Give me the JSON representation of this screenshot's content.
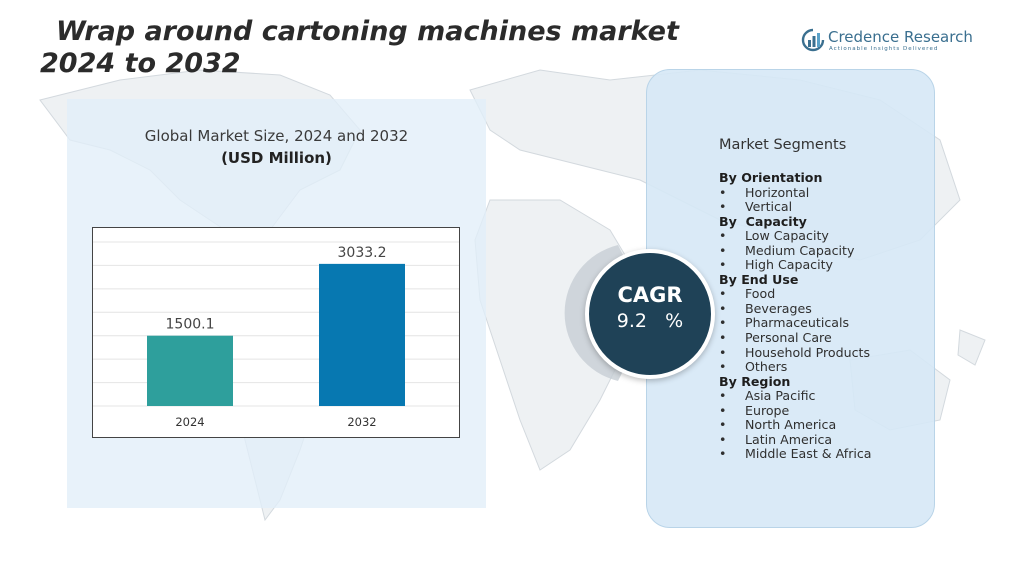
{
  "header": {
    "title": "Wrap around cartoning machines market 2024 to 2032"
  },
  "logo": {
    "name": "Credence Research",
    "tagline": "Actionable Insights Delivered"
  },
  "chart_panel": {
    "title": "Global Market Size, 2024 and 2032",
    "unit": "(USD Million)"
  },
  "chart_data": {
    "type": "bar",
    "categories": [
      "2024",
      "2032"
    ],
    "values": [
      1500.1,
      3033.2
    ],
    "data_labels": [
      "1500.1",
      "3033.2"
    ],
    "bar_colors": [
      "#2e9f9c",
      "#0778b1"
    ],
    "title": "",
    "xlabel": "",
    "ylabel": "",
    "ylim": [
      0,
      3500
    ],
    "grid": true,
    "legend": "none"
  },
  "cagr": {
    "label": "CAGR",
    "value": "9.2   %"
  },
  "segments": {
    "title": "Market Segments",
    "groups": [
      {
        "heading": "By Orientation",
        "items": [
          "Horizontal",
          "Vertical"
        ]
      },
      {
        "heading": "By  Capacity",
        "items": [
          "Low Capacity",
          "Medium Capacity",
          "High Capacity"
        ]
      },
      {
        "heading": "By End Use",
        "items": [
          "Food",
          "Beverages",
          "Pharmaceuticals",
          "Personal Care",
          "Household Products",
          "Others"
        ]
      },
      {
        "heading": "By Region",
        "items": [
          "Asia Pacific",
          "Europe",
          "North America",
          "Latin America",
          "Middle East & Africa"
        ]
      }
    ]
  },
  "colors": {
    "left_panel": "#e2eef8",
    "right_panel": "#d6e8f6",
    "cagr_circle": "#1f4257",
    "logo": "#3a6f8f"
  }
}
